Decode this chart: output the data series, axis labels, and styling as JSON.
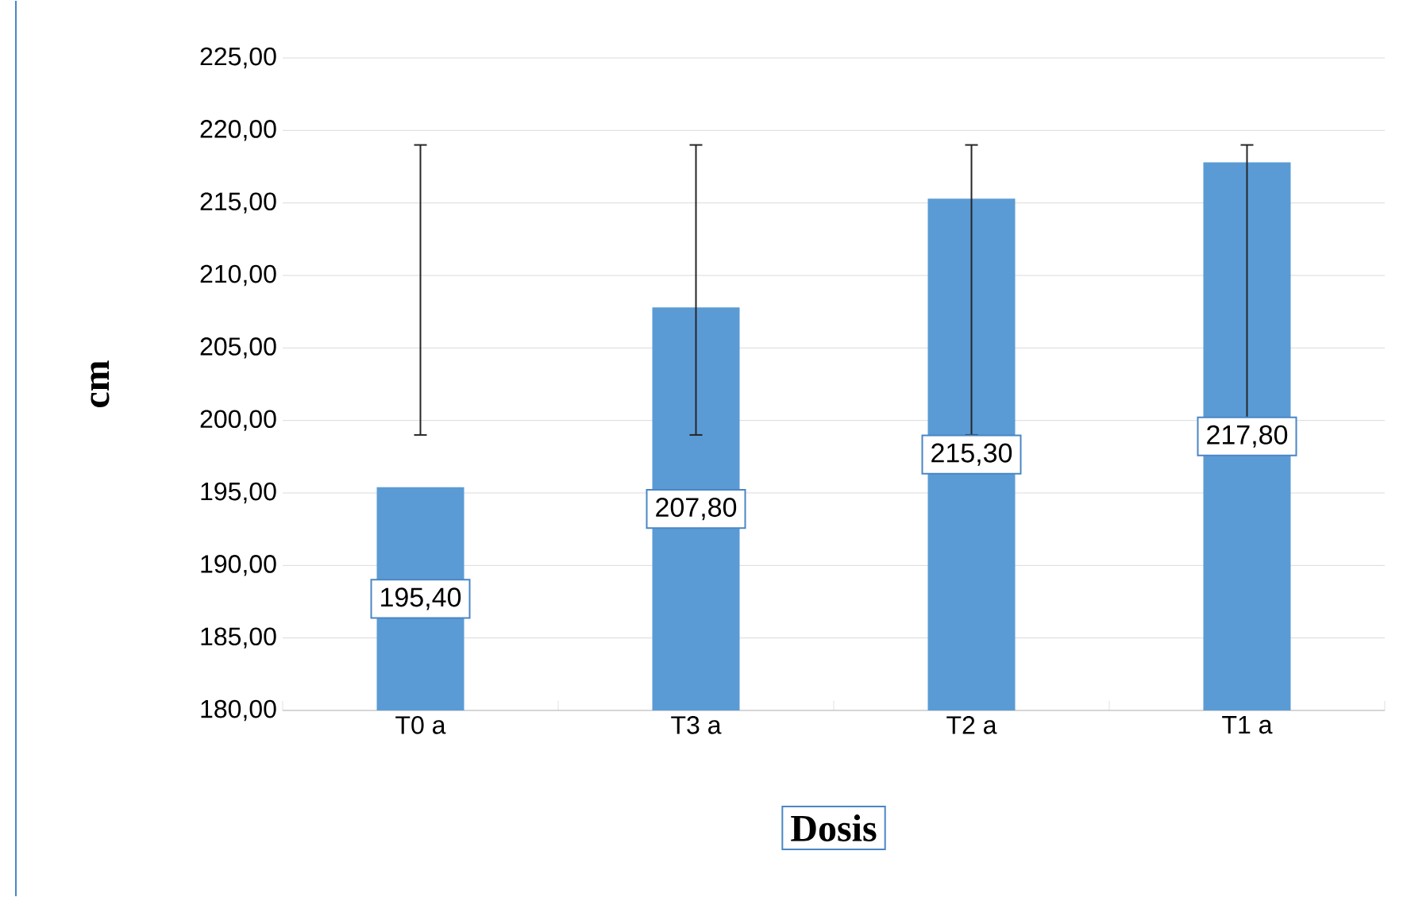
{
  "chart_data": {
    "type": "bar",
    "xlabel": "Dosis",
    "ylabel": "cm",
    "categories": [
      "T0 a",
      "T3 a",
      "T2 a",
      "T1 a"
    ],
    "values": [
      195.4,
      207.8,
      215.3,
      217.8
    ],
    "value_labels": [
      "195,40",
      "207,80",
      "215,30",
      "217,80"
    ],
    "errors": [
      [
        199,
        219
      ],
      [
        199,
        219
      ],
      [
        199,
        219
      ],
      [
        199,
        219
      ]
    ],
    "color": "#5b9bd5",
    "ylim": [
      180,
      225
    ],
    "yticks": [
      {
        "value": 180,
        "label": "180,00"
      },
      {
        "value": 185,
        "label": "185,00"
      },
      {
        "value": 190,
        "label": "190,00"
      },
      {
        "value": 195,
        "label": "195,00"
      },
      {
        "value": 200,
        "label": "200,00"
      },
      {
        "value": 205,
        "label": "205,00"
      },
      {
        "value": 210,
        "label": "210,00"
      },
      {
        "value": 215,
        "label": "215,00"
      },
      {
        "value": 220,
        "label": "220,00"
      },
      {
        "value": 225,
        "label": "225,00"
      }
    ],
    "grid": "y"
  }
}
